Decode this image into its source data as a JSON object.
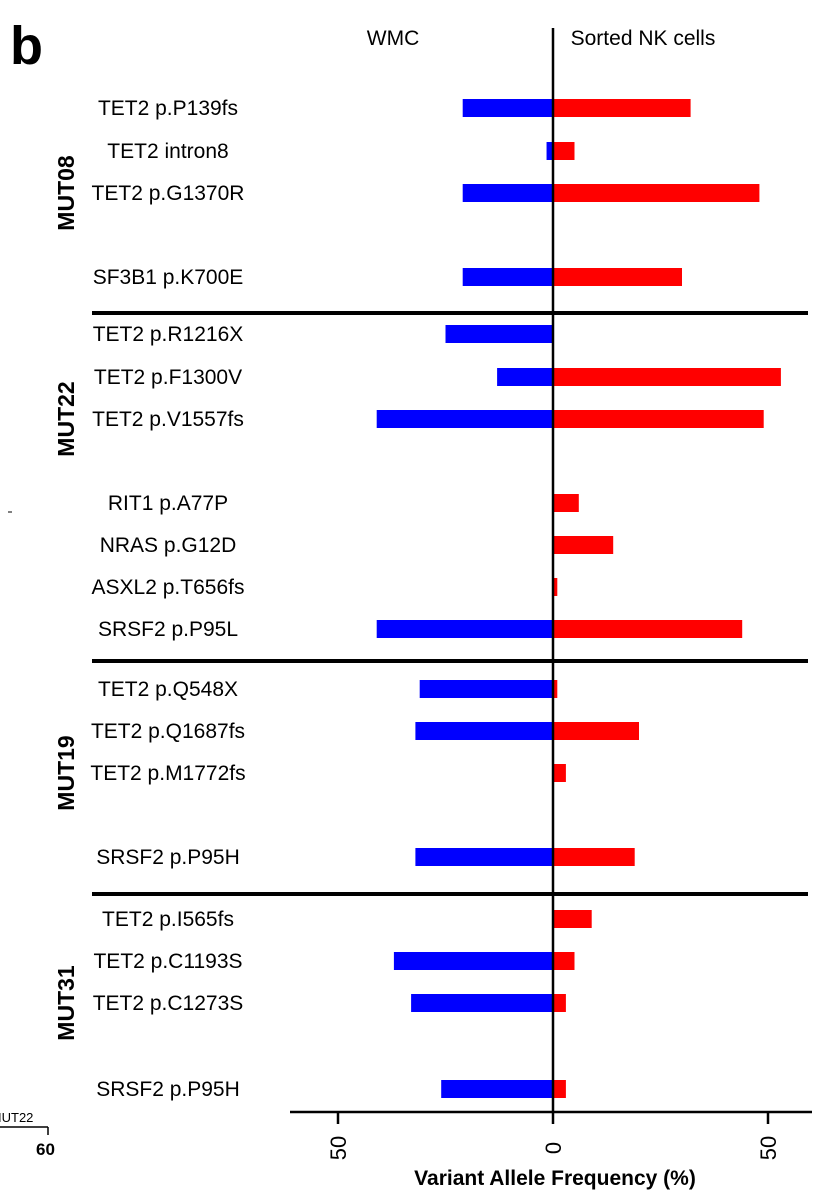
{
  "panel_label": "b",
  "fragments": {
    "left_label": "IUT22",
    "left_tick": "60"
  },
  "colors": {
    "wmc": "#0000ff",
    "nk": "#ff0000",
    "axis": "#000000"
  },
  "chart_data": {
    "type": "bar",
    "orientation": "horizontal",
    "layout": "back-to-back",
    "xlabel": "Variant Allele Frequency (%)",
    "ylabel": "",
    "xlim": [
      -50,
      50
    ],
    "xticks": [
      {
        "value": -50,
        "label": "50"
      },
      {
        "value": 0,
        "label": "0"
      },
      {
        "value": 50,
        "label": "50"
      }
    ],
    "side_labels": {
      "left": "WMC",
      "right": "Sorted NK cells"
    },
    "grid": false,
    "legend": "none",
    "series": [
      {
        "name": "WMC",
        "side": "left",
        "color": "#0000ff"
      },
      {
        "name": "Sorted NK cells",
        "side": "right",
        "color": "#ff0000"
      }
    ],
    "groups": [
      {
        "name": "MUT08",
        "mutations": [
          {
            "label": "TET2 p.P139fs",
            "wmc": 21,
            "nk": 32
          },
          {
            "label": "TET2 intron8",
            "wmc": 1.5,
            "nk": 5
          },
          {
            "label": "TET2 p.G1370R",
            "wmc": 21,
            "nk": 48
          },
          {
            "label": "SF3B1 p.K700E",
            "wmc": 21,
            "nk": 30
          }
        ]
      },
      {
        "name": "MUT22",
        "mutations": [
          {
            "label": "TET2 p.R1216X",
            "wmc": 25,
            "nk": 0
          },
          {
            "label": "TET2 p.F1300V",
            "wmc": 13,
            "nk": 53
          },
          {
            "label": "TET2 p.V1557fs",
            "wmc": 41,
            "nk": 49
          },
          {
            "label": "RIT1 p.A77P",
            "wmc": 0,
            "nk": 6
          },
          {
            "label": "NRAS p.G12D",
            "wmc": 0,
            "nk": 14
          },
          {
            "label": "ASXL2 p.T656fs",
            "wmc": 0,
            "nk": 1
          },
          {
            "label": "SRSF2 p.P95L",
            "wmc": 41,
            "nk": 44
          }
        ]
      },
      {
        "name": "MUT19",
        "mutations": [
          {
            "label": "TET2 p.Q548X",
            "wmc": 31,
            "nk": 1
          },
          {
            "label": "TET2 p.Q1687fs",
            "wmc": 32,
            "nk": 20
          },
          {
            "label": "TET2 p.M1772fs",
            "wmc": 0,
            "nk": 3
          },
          {
            "label": "SRSF2 p.P95H",
            "wmc": 32,
            "nk": 19
          }
        ]
      },
      {
        "name": "MUT31",
        "mutations": [
          {
            "label": "TET2 p.I565fs",
            "wmc": 0,
            "nk": 9
          },
          {
            "label": "TET2 p.C1193S",
            "wmc": 37,
            "nk": 5
          },
          {
            "label": "TET2 p.C1273S",
            "wmc": 33,
            "nk": 3
          },
          {
            "label": "SRSF2 p.P95H",
            "wmc": 26,
            "nk": 3
          }
        ]
      }
    ]
  }
}
